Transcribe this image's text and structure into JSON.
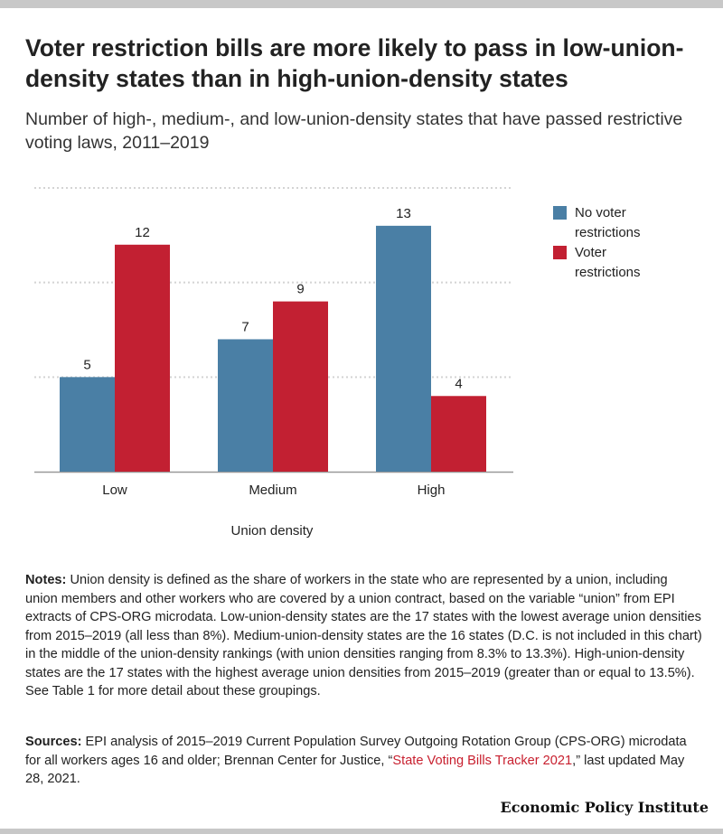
{
  "title": "Voter restriction bills are more likely to pass in low-union-density states than in high-union-density states",
  "subtitle": "Number of high-, medium-, and low-union-density states that have passed restrictive voting laws, 2011–2019",
  "colors": {
    "no_restrictions": "#4a7fa5",
    "restrictions": "#c22032",
    "grid": "#d4d4d4",
    "axis": "#999999"
  },
  "chart_data": {
    "type": "bar",
    "categories": [
      "Low",
      "Medium",
      "High"
    ],
    "series": [
      {
        "name": "No voter restrictions",
        "values": [
          5,
          7,
          13
        ]
      },
      {
        "name": "Voter restrictions",
        "values": [
          12,
          9,
          4
        ]
      }
    ],
    "legend": {
      "position": "right",
      "items": [
        {
          "line1": "No voter",
          "line2": "restrictions"
        },
        {
          "line1": "Voter",
          "line2": "restrictions"
        }
      ]
    },
    "xlabel": "Union density",
    "ylabel": "",
    "ylim": [
      0,
      15
    ],
    "gridlines": [
      5,
      10,
      15
    ],
    "grid": true
  },
  "notes": {
    "label": "Notes:",
    "text": " Union density is defined as the share of workers in the state who are represented by a union, including union members and other workers who are covered by a union contract, based on the variable “union” from EPI extracts of CPS-ORG microdata. Low-union-density states are the 17 states with the lowest average union densities from 2015–2019 (all less than 8%). Medium-union-density states are the 16 states (D.C. is not included in this chart) in the middle of the union-density rankings (with union densities ranging from 8.3% to 13.3%). High-union-density states are the 17 states with the highest average union densities from 2015–2019 (greater than or equal to 13.5%). See Table 1 for more detail about these groupings."
  },
  "sources": {
    "label": "Sources:",
    "text": " EPI analysis of 2015–2019 Current Population Survey Outgoing Rotation Group (CPS-ORG) microdata for all workers ages 16 and older; Brennan Center for Justice, “",
    "link": "State Voting Bills Tracker 2021",
    "text_after": ",” last updated May 28, 2021."
  },
  "brand": "Economic Policy Institute"
}
